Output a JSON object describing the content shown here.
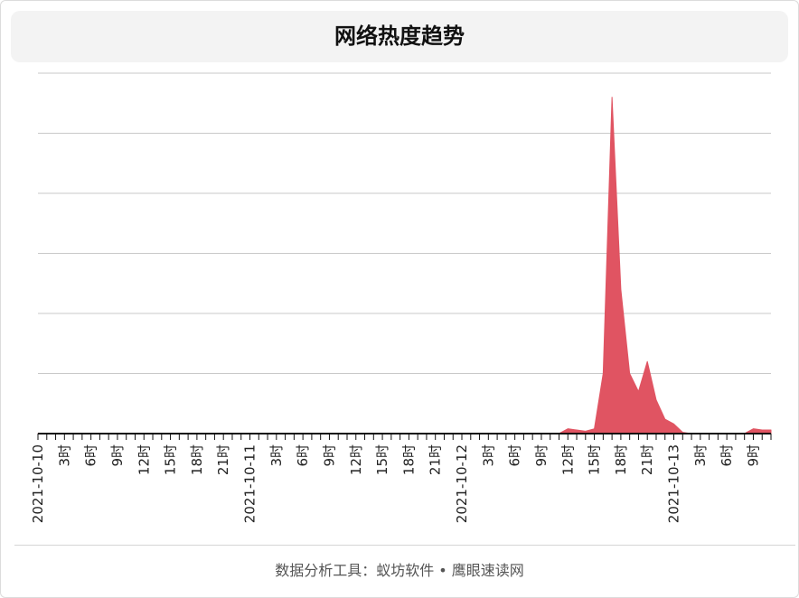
{
  "title": "网络热度趋势",
  "footer": "数据分析工具：蚁坊软件 • 鹰眼速读网",
  "chart_data": {
    "type": "area",
    "title": "网络热度趋势",
    "xlabel": "",
    "ylabel": "",
    "grid": true,
    "legend": "none",
    "color": "#e05462",
    "hour_step": 1,
    "x_tick_labels": [
      "2021-10-10",
      "3时",
      "6时",
      "9时",
      "12时",
      "15时",
      "18时",
      "21时",
      "2021-10-11",
      "3时",
      "6时",
      "9时",
      "12时",
      "15时",
      "18时",
      "21时",
      "2021-10-12",
      "3时",
      "6时",
      "9时",
      "12时",
      "15时",
      "18时",
      "21时",
      "2021-10-13",
      "3时",
      "6时",
      "9时"
    ],
    "ylim": [
      0,
      30
    ],
    "y_gridlines": [
      0,
      5,
      10,
      15,
      20,
      25,
      30
    ],
    "values": [
      0,
      0,
      0,
      0,
      0,
      0,
      0,
      0,
      0,
      0,
      0,
      0,
      0,
      0,
      0,
      0,
      0,
      0,
      0,
      0,
      0,
      0,
      0,
      0,
      0,
      0,
      0,
      0,
      0,
      0,
      0,
      0,
      0,
      0,
      0,
      0,
      0,
      0,
      0,
      0,
      0,
      0,
      0,
      0,
      0,
      0,
      0,
      0,
      0,
      0,
      0,
      0,
      0,
      0,
      0,
      0,
      0,
      0,
      0,
      0,
      0.4,
      0.3,
      0.2,
      0.4,
      5,
      28,
      12,
      5,
      3.5,
      6,
      2.8,
      1.2,
      0.8,
      0.1,
      0,
      0,
      0,
      0,
      0,
      0,
      0,
      0.4,
      0.3,
      0.3
    ]
  }
}
